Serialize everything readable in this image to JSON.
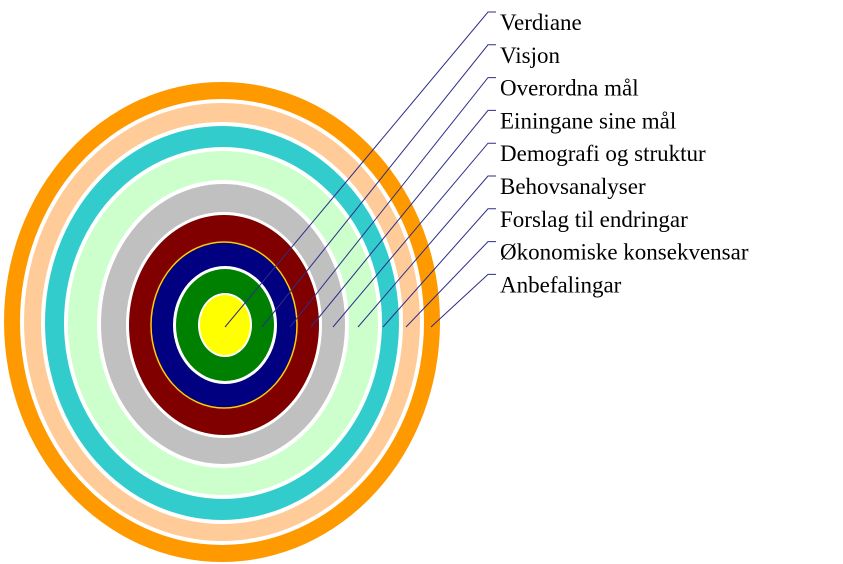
{
  "labels": [
    "Verdiane",
    "Visjon",
    "Overordna mål",
    "Einingane sine mål",
    "Demografi og struktur",
    "Behovsanalyser",
    "Forslag til endringar",
    "Økonomiske konsekvensar",
    "Anbefalingar"
  ]
}
